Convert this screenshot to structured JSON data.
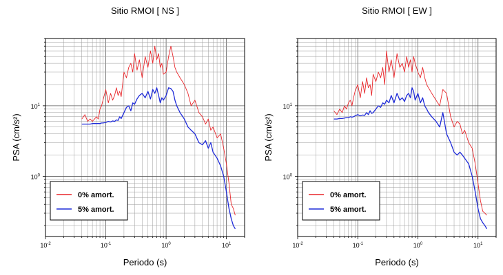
{
  "chart_data": [
    {
      "type": "line",
      "title": "Sitio RMOI [ NS ]",
      "xlabel": "Periodo (s)",
      "ylabel": "PSA (cm/s²)",
      "xscale": "log",
      "yscale": "log",
      "xlim": [
        0.01,
        20
      ],
      "ylim": [
        0.14,
        90
      ],
      "grid": true,
      "legend_position": "bottom-left",
      "x_ticks": [
        {
          "base": "10",
          "exp": "-2",
          "value": 0.01
        },
        {
          "base": "10",
          "exp": "-1",
          "value": 0.1
        },
        {
          "base": "10",
          "exp": "0",
          "value": 1
        },
        {
          "base": "10",
          "exp": "1",
          "value": 10
        }
      ],
      "y_ticks": [
        {
          "base": "10",
          "exp": "0",
          "value": 1
        },
        {
          "base": "10",
          "exp": "1",
          "value": 10
        }
      ],
      "series": [
        {
          "name": "0% amort.",
          "color": "#e8262a",
          "x": [
            0.04,
            0.045,
            0.05,
            0.055,
            0.06,
            0.065,
            0.07,
            0.075,
            0.08,
            0.085,
            0.09,
            0.1,
            0.11,
            0.12,
            0.13,
            0.14,
            0.15,
            0.16,
            0.17,
            0.18,
            0.2,
            0.22,
            0.24,
            0.26,
            0.28,
            0.3,
            0.33,
            0.36,
            0.4,
            0.45,
            0.5,
            0.55,
            0.6,
            0.65,
            0.7,
            0.75,
            0.8,
            0.85,
            0.9,
            1.0,
            1.1,
            1.2,
            1.3,
            1.4,
            1.5,
            1.7,
            2.0,
            2.3,
            2.6,
            3.0,
            3.5,
            4.0,
            4.5,
            5.0,
            5.5,
            6.0,
            7.0,
            8.0,
            9.0,
            10.0,
            11.0,
            12.0,
            13.0,
            14.0
          ],
          "values": [
            6.5,
            7.5,
            6.0,
            6.5,
            6.0,
            6.5,
            7.0,
            6.5,
            9.0,
            10.0,
            12.0,
            17.0,
            11.0,
            15.0,
            12.0,
            14.0,
            18.0,
            14.0,
            16.0,
            13.5,
            30.0,
            25.0,
            35.0,
            40.0,
            30.0,
            55.0,
            32.0,
            45.0,
            25.0,
            50.0,
            35.0,
            60.0,
            40.0,
            70.0,
            45.0,
            55.0,
            35.0,
            40.0,
            28.0,
            30.0,
            50.0,
            70.0,
            50.0,
            35.0,
            30.0,
            25.0,
            20.0,
            15.0,
            10.0,
            12.0,
            8.0,
            7.0,
            5.5,
            6.5,
            4.5,
            5.0,
            3.5,
            4.0,
            2.5,
            1.5,
            0.8,
            0.4,
            0.35,
            0.28
          ]
        },
        {
          "name": "5% amort.",
          "color": "#1f2bd8",
          "x": [
            0.04,
            0.045,
            0.05,
            0.055,
            0.06,
            0.065,
            0.07,
            0.075,
            0.08,
            0.085,
            0.09,
            0.1,
            0.11,
            0.12,
            0.13,
            0.14,
            0.15,
            0.16,
            0.17,
            0.18,
            0.2,
            0.22,
            0.24,
            0.26,
            0.28,
            0.3,
            0.33,
            0.36,
            0.4,
            0.45,
            0.5,
            0.55,
            0.6,
            0.65,
            0.7,
            0.75,
            0.8,
            0.85,
            0.9,
            1.0,
            1.1,
            1.2,
            1.3,
            1.4,
            1.5,
            1.7,
            2.0,
            2.3,
            2.6,
            3.0,
            3.5,
            4.0,
            4.5,
            5.0,
            5.5,
            6.0,
            7.0,
            8.0,
            9.0,
            10.0,
            11.0,
            12.0,
            13.0,
            14.0
          ],
          "values": [
            5.5,
            5.5,
            5.5,
            5.5,
            5.6,
            5.6,
            5.6,
            5.6,
            5.6,
            5.7,
            5.7,
            5.8,
            6.0,
            5.9,
            6.1,
            6.0,
            6.3,
            6.2,
            7.0,
            6.6,
            8.0,
            9.5,
            10.0,
            8.5,
            11.0,
            10.5,
            12.5,
            14.0,
            15.0,
            13.0,
            16.0,
            12.5,
            17.0,
            15.0,
            18.0,
            14.0,
            11.0,
            13.0,
            12.0,
            14.0,
            18.0,
            17.5,
            16.0,
            12.0,
            10.0,
            8.0,
            6.5,
            5.0,
            4.5,
            4.0,
            3.0,
            2.8,
            3.2,
            2.5,
            3.0,
            2.2,
            1.8,
            1.4,
            1.0,
            0.6,
            0.35,
            0.25,
            0.2,
            0.18
          ]
        }
      ]
    },
    {
      "type": "line",
      "title": "Sitio RMOI [ EW ]",
      "xlabel": "Periodo (s)",
      "ylabel": "PSA (cm/s²)",
      "xscale": "log",
      "yscale": "log",
      "xlim": [
        0.01,
        20
      ],
      "ylim": [
        0.14,
        90
      ],
      "grid": true,
      "legend_position": "bottom-left",
      "x_ticks": [
        {
          "base": "10",
          "exp": "-2",
          "value": 0.01
        },
        {
          "base": "10",
          "exp": "-1",
          "value": 0.1
        },
        {
          "base": "10",
          "exp": "0",
          "value": 1
        },
        {
          "base": "10",
          "exp": "1",
          "value": 10
        }
      ],
      "y_ticks": [
        {
          "base": "10",
          "exp": "0",
          "value": 1
        },
        {
          "base": "10",
          "exp": "1",
          "value": 10
        }
      ],
      "series": [
        {
          "name": "0% amort.",
          "color": "#e8262a",
          "x": [
            0.04,
            0.045,
            0.05,
            0.055,
            0.06,
            0.065,
            0.07,
            0.075,
            0.08,
            0.085,
            0.09,
            0.1,
            0.11,
            0.12,
            0.13,
            0.14,
            0.15,
            0.16,
            0.17,
            0.18,
            0.2,
            0.22,
            0.24,
            0.26,
            0.28,
            0.3,
            0.33,
            0.36,
            0.4,
            0.45,
            0.5,
            0.55,
            0.6,
            0.65,
            0.7,
            0.75,
            0.8,
            0.85,
            0.9,
            1.0,
            1.1,
            1.2,
            1.3,
            1.4,
            1.5,
            1.7,
            2.0,
            2.3,
            2.6,
            3.0,
            3.5,
            4.0,
            4.5,
            5.0,
            5.5,
            6.0,
            7.0,
            8.0,
            9.0,
            10.0,
            11.0,
            12.0,
            13.0,
            14.0
          ],
          "values": [
            8.5,
            7.5,
            9.0,
            8.0,
            10.0,
            9.0,
            11.0,
            12.0,
            10.0,
            13.0,
            16.0,
            20.0,
            13.0,
            22.0,
            15.0,
            25.0,
            18.0,
            20.0,
            14.0,
            28.0,
            22.0,
            30.0,
            25.0,
            35.0,
            20.0,
            60.0,
            30.0,
            45.0,
            25.0,
            55.0,
            35.0,
            40.0,
            30.0,
            50.0,
            35.0,
            45.0,
            30.0,
            50.0,
            40.0,
            30.0,
            25.0,
            35.0,
            25.0,
            20.0,
            18.0,
            15.0,
            12.0,
            10.0,
            17.0,
            15.0,
            7.0,
            5.0,
            6.0,
            5.5,
            4.0,
            4.5,
            3.0,
            2.5,
            1.5,
            0.8,
            0.45,
            0.32,
            0.3,
            0.28
          ]
        },
        {
          "name": "5% amort.",
          "color": "#1f2bd8",
          "x": [
            0.04,
            0.045,
            0.05,
            0.055,
            0.06,
            0.065,
            0.07,
            0.075,
            0.08,
            0.085,
            0.09,
            0.1,
            0.11,
            0.12,
            0.13,
            0.14,
            0.15,
            0.16,
            0.17,
            0.18,
            0.2,
            0.22,
            0.24,
            0.26,
            0.28,
            0.3,
            0.33,
            0.36,
            0.4,
            0.45,
            0.5,
            0.55,
            0.6,
            0.65,
            0.7,
            0.75,
            0.8,
            0.85,
            0.9,
            1.0,
            1.1,
            1.2,
            1.3,
            1.4,
            1.5,
            1.7,
            2.0,
            2.3,
            2.6,
            3.0,
            3.5,
            4.0,
            4.5,
            5.0,
            5.5,
            6.0,
            7.0,
            8.0,
            9.0,
            10.0,
            11.0,
            12.0,
            13.0,
            14.0
          ],
          "values": [
            6.5,
            6.5,
            6.6,
            6.6,
            6.7,
            6.8,
            6.8,
            7.0,
            6.9,
            7.0,
            7.2,
            7.5,
            7.2,
            7.4,
            7.3,
            8.0,
            7.5,
            8.5,
            7.8,
            8.0,
            9.0,
            10.0,
            9.5,
            11.0,
            10.5,
            12.0,
            11.0,
            14.0,
            11.0,
            15.0,
            12.0,
            13.0,
            11.5,
            14.0,
            15.0,
            13.0,
            18.0,
            16.0,
            12.0,
            15.0,
            11.0,
            13.0,
            10.0,
            9.0,
            8.0,
            7.0,
            6.0,
            5.0,
            8.0,
            4.0,
            3.0,
            2.2,
            2.0,
            2.2,
            2.0,
            1.8,
            1.5,
            1.0,
            0.6,
            0.35,
            0.25,
            0.22,
            0.2,
            0.18
          ]
        }
      ]
    }
  ]
}
